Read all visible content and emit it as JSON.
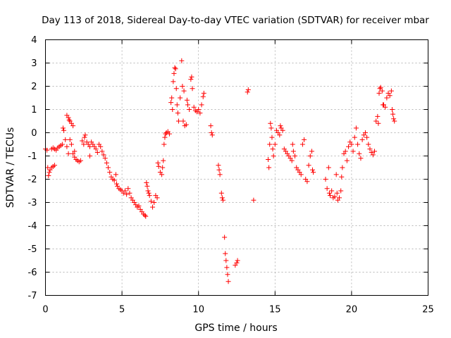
{
  "chart_data": {
    "type": "scatter",
    "title": "Day 113 of 2018, Sidereal Day-to-day VTEC variation (SDTVAR) for receiver mbar",
    "xlabel": "GPS time / hours",
    "ylabel": "SDTVAR / TECUs",
    "xlim": [
      0,
      25
    ],
    "ylim": [
      -7,
      4
    ],
    "xticks": [
      0,
      5,
      10,
      15,
      20,
      25
    ],
    "yticks": [
      -7,
      -6,
      -5,
      -4,
      -3,
      -2,
      -1,
      0,
      1,
      2,
      3,
      4
    ],
    "grid": true,
    "marker": "+",
    "marker_color": "#ff0000",
    "series": [
      {
        "name": "SDTVAR",
        "points": [
          [
            0.0,
            -0.7
          ],
          [
            0.1,
            -0.75
          ],
          [
            0.15,
            -1.5
          ],
          [
            0.2,
            -1.85
          ],
          [
            0.25,
            -1.7
          ],
          [
            0.3,
            -1.6
          ],
          [
            0.4,
            -1.5
          ],
          [
            0.5,
            -1.45
          ],
          [
            0.6,
            -1.4
          ],
          [
            0.4,
            -0.7
          ],
          [
            0.5,
            -0.65
          ],
          [
            0.6,
            -0.7
          ],
          [
            0.7,
            -0.75
          ],
          [
            0.8,
            -0.65
          ],
          [
            0.9,
            -0.6
          ],
          [
            1.0,
            -0.55
          ],
          [
            1.1,
            -0.5
          ],
          [
            1.15,
            0.2
          ],
          [
            1.2,
            0.1
          ],
          [
            1.3,
            -0.3
          ],
          [
            1.4,
            -0.6
          ],
          [
            1.5,
            -0.9
          ],
          [
            1.6,
            -0.3
          ],
          [
            1.7,
            -0.5
          ],
          [
            1.8,
            -0.9
          ],
          [
            1.9,
            -1.05
          ],
          [
            1.4,
            0.75
          ],
          [
            1.5,
            0.65
          ],
          [
            1.55,
            0.55
          ],
          [
            1.6,
            0.5
          ],
          [
            1.7,
            0.4
          ],
          [
            1.8,
            0.3
          ],
          [
            1.9,
            -0.8
          ],
          [
            2.0,
            -1.15
          ],
          [
            2.1,
            -1.2
          ],
          [
            2.2,
            -1.25
          ],
          [
            2.3,
            -1.2
          ],
          [
            2.4,
            -0.35
          ],
          [
            2.5,
            -0.5
          ],
          [
            2.55,
            -0.2
          ],
          [
            2.6,
            -0.1
          ],
          [
            2.7,
            -0.4
          ],
          [
            2.8,
            -0.5
          ],
          [
            2.9,
            -0.6
          ],
          [
            2.9,
            -1.0
          ],
          [
            3.0,
            -0.4
          ],
          [
            3.1,
            -0.5
          ],
          [
            3.2,
            -0.6
          ],
          [
            3.3,
            -0.7
          ],
          [
            3.4,
            -0.85
          ],
          [
            3.5,
            -0.5
          ],
          [
            3.6,
            -0.6
          ],
          [
            3.7,
            -0.8
          ],
          [
            3.8,
            -0.95
          ],
          [
            3.9,
            -1.1
          ],
          [
            4.0,
            -1.3
          ],
          [
            4.1,
            -1.5
          ],
          [
            4.2,
            -1.7
          ],
          [
            4.3,
            -1.9
          ],
          [
            4.4,
            -2.0
          ],
          [
            4.5,
            -2.05
          ],
          [
            4.6,
            -1.8
          ],
          [
            4.65,
            -2.2
          ],
          [
            4.7,
            -2.3
          ],
          [
            4.8,
            -2.4
          ],
          [
            4.9,
            -2.45
          ],
          [
            5.0,
            -2.5
          ],
          [
            5.1,
            -2.6
          ],
          [
            5.2,
            -2.5
          ],
          [
            5.3,
            -2.65
          ],
          [
            5.4,
            -2.4
          ],
          [
            5.5,
            -2.6
          ],
          [
            5.6,
            -2.8
          ],
          [
            5.7,
            -2.9
          ],
          [
            5.8,
            -3.0
          ],
          [
            5.9,
            -3.1
          ],
          [
            6.0,
            -3.2
          ],
          [
            6.1,
            -3.15
          ],
          [
            6.2,
            -3.3
          ],
          [
            6.3,
            -3.4
          ],
          [
            6.4,
            -3.5
          ],
          [
            6.5,
            -3.55
          ],
          [
            6.55,
            -3.6
          ],
          [
            6.6,
            -2.15
          ],
          [
            6.65,
            -2.3
          ],
          [
            6.7,
            -2.5
          ],
          [
            6.75,
            -2.6
          ],
          [
            6.8,
            -2.7
          ],
          [
            6.9,
            -2.95
          ],
          [
            7.0,
            -3.2
          ],
          [
            7.1,
            -3.0
          ],
          [
            7.2,
            -2.7
          ],
          [
            7.3,
            -2.8
          ],
          [
            7.35,
            -1.3
          ],
          [
            7.4,
            -1.45
          ],
          [
            7.5,
            -1.7
          ],
          [
            7.6,
            -1.8
          ],
          [
            7.65,
            -1.5
          ],
          [
            7.7,
            -1.2
          ],
          [
            7.75,
            -0.5
          ],
          [
            7.8,
            -0.2
          ],
          [
            7.85,
            -0.05
          ],
          [
            7.9,
            0.0
          ],
          [
            8.0,
            0.05
          ],
          [
            8.1,
            -0.05
          ],
          [
            8.2,
            1.3
          ],
          [
            8.25,
            1.5
          ],
          [
            8.3,
            1.0
          ],
          [
            8.35,
            2.2
          ],
          [
            8.4,
            2.55
          ],
          [
            8.45,
            2.8
          ],
          [
            8.5,
            2.75
          ],
          [
            8.55,
            1.9
          ],
          [
            8.6,
            1.2
          ],
          [
            8.65,
            0.85
          ],
          [
            8.7,
            0.5
          ],
          [
            8.8,
            1.5
          ],
          [
            8.9,
            3.1
          ],
          [
            8.95,
            2.0
          ],
          [
            9.0,
            0.5
          ],
          [
            9.05,
            1.8
          ],
          [
            9.1,
            0.3
          ],
          [
            9.2,
            0.35
          ],
          [
            9.25,
            1.4
          ],
          [
            9.3,
            1.2
          ],
          [
            9.4,
            1.0
          ],
          [
            9.5,
            2.3
          ],
          [
            9.55,
            2.4
          ],
          [
            9.6,
            1.9
          ],
          [
            9.7,
            1.1
          ],
          [
            9.8,
            0.95
          ],
          [
            9.9,
            0.9
          ],
          [
            10.0,
            1.0
          ],
          [
            10.1,
            0.85
          ],
          [
            10.2,
            1.2
          ],
          [
            10.3,
            1.55
          ],
          [
            10.35,
            1.7
          ],
          [
            10.8,
            0.3
          ],
          [
            10.85,
            0.0
          ],
          [
            10.9,
            -0.1
          ],
          [
            11.3,
            -1.4
          ],
          [
            11.35,
            -1.6
          ],
          [
            11.4,
            -1.8
          ],
          [
            11.5,
            -2.6
          ],
          [
            11.55,
            -2.8
          ],
          [
            11.6,
            -2.9
          ],
          [
            11.7,
            -4.5
          ],
          [
            11.75,
            -5.2
          ],
          [
            11.8,
            -5.5
          ],
          [
            11.85,
            -5.8
          ],
          [
            11.9,
            -6.1
          ],
          [
            11.95,
            -6.4
          ],
          [
            12.4,
            -5.7
          ],
          [
            12.5,
            -5.6
          ],
          [
            12.55,
            -5.5
          ],
          [
            13.2,
            1.75
          ],
          [
            13.25,
            1.85
          ],
          [
            13.6,
            -2.9
          ],
          [
            14.55,
            -1.15
          ],
          [
            14.6,
            -1.5
          ],
          [
            14.65,
            -0.5
          ],
          [
            14.7,
            0.4
          ],
          [
            14.75,
            0.2
          ],
          [
            14.8,
            -0.2
          ],
          [
            14.85,
            -0.7
          ],
          [
            14.9,
            -1.0
          ],
          [
            15.0,
            -0.5
          ],
          [
            15.1,
            0.1
          ],
          [
            15.2,
            0.0
          ],
          [
            15.3,
            -0.1
          ],
          [
            15.35,
            0.3
          ],
          [
            15.4,
            0.2
          ],
          [
            15.5,
            0.1
          ],
          [
            15.6,
            -0.7
          ],
          [
            15.7,
            -0.8
          ],
          [
            15.8,
            -0.9
          ],
          [
            15.9,
            -1.0
          ],
          [
            16.0,
            -1.1
          ],
          [
            16.1,
            -1.2
          ],
          [
            16.15,
            -0.5
          ],
          [
            16.2,
            -0.8
          ],
          [
            16.3,
            -1.0
          ],
          [
            16.4,
            -1.5
          ],
          [
            16.5,
            -1.6
          ],
          [
            16.6,
            -1.7
          ],
          [
            16.7,
            -1.8
          ],
          [
            16.8,
            -0.5
          ],
          [
            16.9,
            -0.3
          ],
          [
            17.0,
            -2.0
          ],
          [
            17.1,
            -2.1
          ],
          [
            17.2,
            -1.4
          ],
          [
            17.3,
            -1.0
          ],
          [
            17.4,
            -0.8
          ],
          [
            17.45,
            -1.6
          ],
          [
            17.5,
            -1.7
          ],
          [
            18.3,
            -2.0
          ],
          [
            18.4,
            -2.4
          ],
          [
            18.5,
            -1.5
          ],
          [
            18.55,
            -2.6
          ],
          [
            18.6,
            -2.7
          ],
          [
            18.7,
            -2.5
          ],
          [
            18.8,
            -2.8
          ],
          [
            18.9,
            -2.75
          ],
          [
            19.0,
            -1.8
          ],
          [
            19.05,
            -2.6
          ],
          [
            19.1,
            -2.9
          ],
          [
            19.2,
            -2.8
          ],
          [
            19.3,
            -2.5
          ],
          [
            19.35,
            -1.9
          ],
          [
            19.4,
            -1.5
          ],
          [
            19.5,
            -0.9
          ],
          [
            19.6,
            -0.8
          ],
          [
            19.7,
            -1.2
          ],
          [
            19.8,
            -0.6
          ],
          [
            19.9,
            -0.4
          ],
          [
            20.0,
            -0.5
          ],
          [
            20.1,
            -0.8
          ],
          [
            20.2,
            -0.2
          ],
          [
            20.3,
            0.2
          ],
          [
            20.4,
            -0.5
          ],
          [
            20.5,
            -0.9
          ],
          [
            20.6,
            -1.1
          ],
          [
            20.7,
            -0.3
          ],
          [
            20.8,
            -0.1
          ],
          [
            20.9,
            0.0
          ],
          [
            21.0,
            -0.2
          ],
          [
            21.1,
            -0.5
          ],
          [
            21.2,
            -0.7
          ],
          [
            21.3,
            -0.85
          ],
          [
            21.4,
            -0.95
          ],
          [
            21.5,
            -0.8
          ],
          [
            21.6,
            0.5
          ],
          [
            21.7,
            0.7
          ],
          [
            21.75,
            0.4
          ],
          [
            21.8,
            1.7
          ],
          [
            21.85,
            1.9
          ],
          [
            21.9,
            1.95
          ],
          [
            22.0,
            1.8
          ],
          [
            22.05,
            1.2
          ],
          [
            22.1,
            1.2
          ],
          [
            22.2,
            1.1
          ],
          [
            22.3,
            1.5
          ],
          [
            22.4,
            1.7
          ],
          [
            22.5,
            1.6
          ],
          [
            22.6,
            1.8
          ],
          [
            22.65,
            1.0
          ],
          [
            22.7,
            0.8
          ],
          [
            22.75,
            0.6
          ],
          [
            22.8,
            0.5
          ]
        ]
      }
    ]
  }
}
